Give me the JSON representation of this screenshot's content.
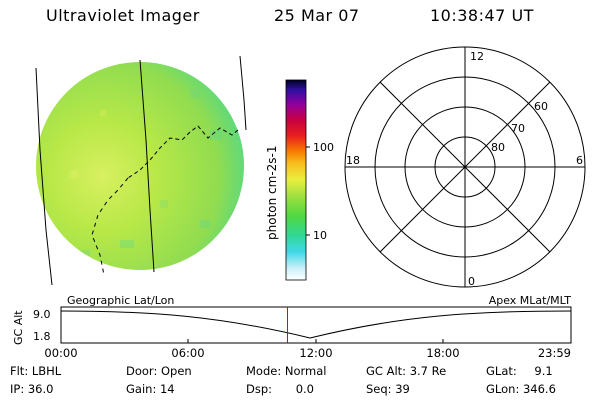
{
  "header": {
    "title": "Ultraviolet Imager",
    "date": "25 Mar 07",
    "time": "10:38:47 UT"
  },
  "colorbar": {
    "label": "photon cm-2s-1",
    "ticks": [
      "100",
      "10"
    ]
  },
  "polar_plot": {
    "mlt_labels": {
      "top": "12",
      "left": "18",
      "right": "6",
      "bottom": "0"
    },
    "lat_labels": [
      "60",
      "70",
      "80"
    ]
  },
  "orbit_panel": {
    "left_title": "Geographic Lat/Lon",
    "right_title": "Apex MLat/MLT",
    "y_axis_label": "GC Alt",
    "y_ticks": [
      "9.0",
      "1.8"
    ],
    "x_ticks": [
      "00:00",
      "06:00",
      "12:00",
      "18:00",
      "23:59"
    ],
    "current_time_marker": 10.65
  },
  "info": {
    "flt": {
      "label": "Flt:",
      "value": "LBHL"
    },
    "ip": {
      "label": "IP:",
      "value": "36.0"
    },
    "door": {
      "label": "Door:",
      "value": "Open"
    },
    "gain": {
      "label": "Gain:",
      "value": "14"
    },
    "mode": {
      "label": "Mode:",
      "value": "Normal"
    },
    "dsp": {
      "label": "Dsp:",
      "value": "0.0"
    },
    "gc_alt": {
      "label": "GC Alt:",
      "value": "3.7 Re"
    },
    "seq": {
      "label": "Seq:",
      "value": "39"
    },
    "glat": {
      "label": "GLat:",
      "value": "9.1"
    },
    "glon": {
      "label": "GLon:",
      "value": "346.6"
    }
  },
  "colors": {
    "marker": "#e00000",
    "disk_main": "#a8e040",
    "disk_limb": "#40d890"
  }
}
